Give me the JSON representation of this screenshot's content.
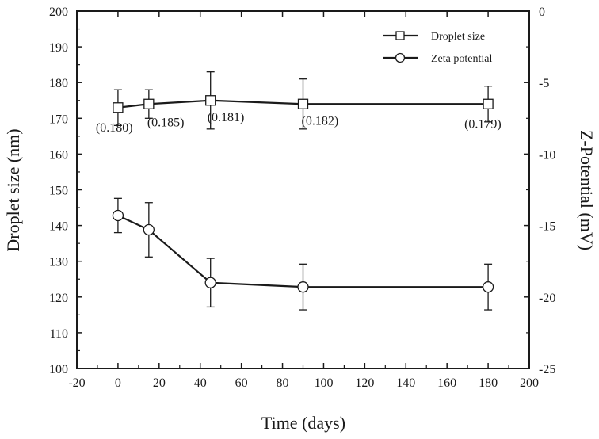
{
  "chart_data": {
    "type": "line",
    "x": [
      0,
      15,
      45,
      90,
      180
    ],
    "xlabel": "Time (days)",
    "xlim": [
      -20,
      200
    ],
    "xticks": [
      -20,
      0,
      20,
      40,
      60,
      80,
      100,
      120,
      140,
      160,
      180,
      200
    ],
    "ylabel": "Droplet size (nm)",
    "ylim": [
      100,
      200
    ],
    "yticks": [
      100,
      110,
      120,
      130,
      140,
      150,
      160,
      170,
      180,
      190,
      200
    ],
    "y2label": "Z-Potential (mV)",
    "y2lim": [
      -25,
      0
    ],
    "y2ticks": [
      -25,
      -20,
      -15,
      -10,
      -5,
      0
    ],
    "grid": false,
    "legend_position": "top-right",
    "series": [
      {
        "name": "Droplet size",
        "axis": "left",
        "marker": "square",
        "values": [
          173,
          174,
          175,
          174,
          174
        ],
        "errors": [
          5,
          4,
          8,
          7,
          5
        ],
        "annotations": [
          "(0.180)",
          "(0.185)",
          "(0.181)",
          "(0.182)",
          "(0.179)"
        ]
      },
      {
        "name": "Zeta potential",
        "axis": "right",
        "marker": "circle",
        "values": [
          -14.3,
          -15.3,
          -19.0,
          -19.3,
          -19.3
        ],
        "errors": [
          1.2,
          1.9,
          1.7,
          1.6,
          1.6
        ]
      }
    ]
  }
}
